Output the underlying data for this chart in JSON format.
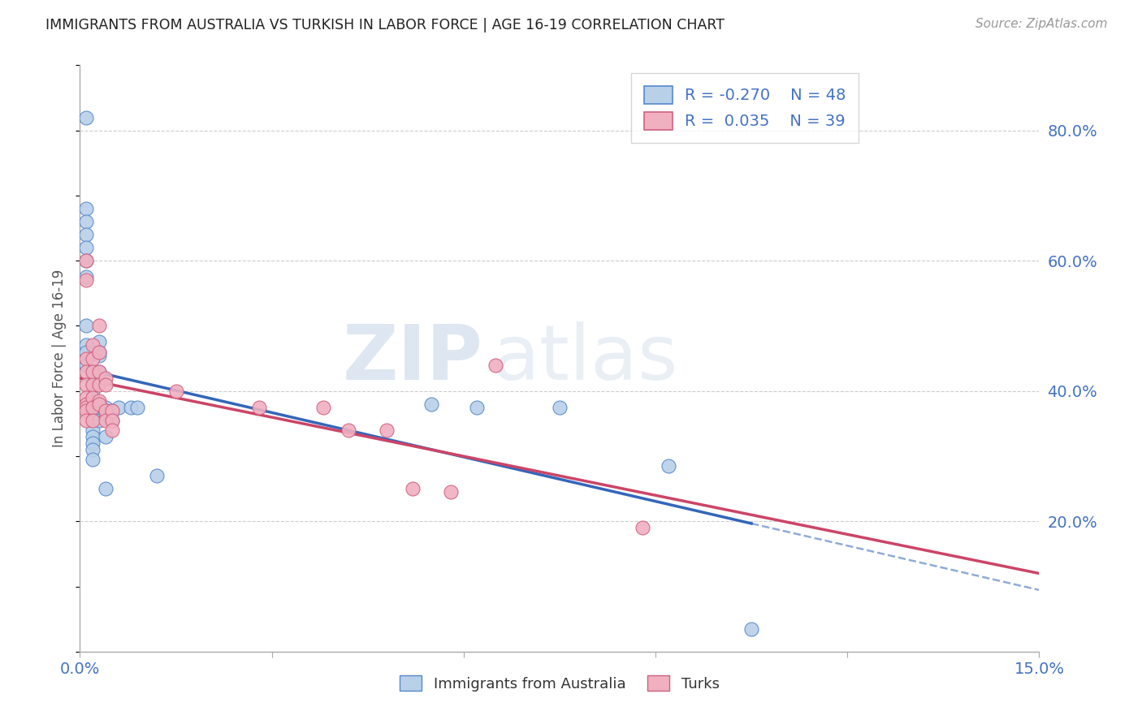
{
  "title": "IMMIGRANTS FROM AUSTRALIA VS TURKISH IN LABOR FORCE | AGE 16-19 CORRELATION CHART",
  "source": "Source: ZipAtlas.com",
  "ylabel": "In Labor Force | Age 16-19",
  "y_ticks": [
    0.2,
    0.4,
    0.6,
    0.8
  ],
  "x_min": 0.0,
  "x_max": 0.15,
  "y_min": 0.0,
  "y_max": 0.9,
  "R_aus": -0.27,
  "N_aus": 48,
  "R_turks": 0.035,
  "N_turks": 39,
  "color_australia_fill": "#b8d0e8",
  "color_australia_edge": "#5588cc",
  "color_turks_fill": "#f0b0c0",
  "color_turks_edge": "#d06080",
  "color_line_australia": "#3366bb",
  "color_line_turks": "#cc4466",
  "color_axis_label": "#4472c4",
  "color_grid": "#cccccc",
  "watermark_zip": "ZIP",
  "watermark_atlas": "atlas",
  "australia_x": [
    0.001,
    0.001,
    0.001,
    0.001,
    0.001,
    0.001,
    0.001,
    0.001,
    0.001,
    0.001,
    0.001,
    0.002,
    0.002,
    0.002,
    0.002,
    0.002,
    0.002,
    0.002,
    0.002,
    0.002,
    0.002,
    0.002,
    0.002,
    0.002,
    0.003,
    0.003,
    0.003,
    0.003,
    0.003,
    0.003,
    0.003,
    0.004,
    0.004,
    0.004,
    0.004,
    0.004,
    0.005,
    0.005,
    0.005,
    0.006,
    0.008,
    0.009,
    0.012,
    0.055,
    0.062,
    0.075,
    0.092,
    0.105
  ],
  "australia_y": [
    0.82,
    0.68,
    0.66,
    0.64,
    0.62,
    0.6,
    0.575,
    0.5,
    0.47,
    0.46,
    0.44,
    0.42,
    0.41,
    0.4,
    0.385,
    0.375,
    0.37,
    0.365,
    0.355,
    0.34,
    0.33,
    0.32,
    0.31,
    0.295,
    0.475,
    0.46,
    0.455,
    0.43,
    0.38,
    0.375,
    0.355,
    0.375,
    0.37,
    0.365,
    0.33,
    0.25,
    0.37,
    0.37,
    0.355,
    0.375,
    0.375,
    0.375,
    0.27,
    0.38,
    0.375,
    0.375,
    0.285,
    0.035
  ],
  "turks_x": [
    0.001,
    0.001,
    0.001,
    0.001,
    0.001,
    0.001,
    0.001,
    0.001,
    0.001,
    0.001,
    0.002,
    0.002,
    0.002,
    0.002,
    0.002,
    0.002,
    0.002,
    0.003,
    0.003,
    0.003,
    0.003,
    0.003,
    0.003,
    0.004,
    0.004,
    0.004,
    0.004,
    0.005,
    0.005,
    0.005,
    0.015,
    0.028,
    0.038,
    0.042,
    0.048,
    0.052,
    0.058,
    0.065,
    0.088
  ],
  "turks_y": [
    0.6,
    0.57,
    0.45,
    0.43,
    0.41,
    0.39,
    0.38,
    0.375,
    0.37,
    0.355,
    0.47,
    0.45,
    0.43,
    0.41,
    0.39,
    0.375,
    0.355,
    0.5,
    0.46,
    0.43,
    0.41,
    0.385,
    0.38,
    0.42,
    0.41,
    0.37,
    0.355,
    0.37,
    0.355,
    0.34,
    0.4,
    0.375,
    0.375,
    0.34,
    0.34,
    0.25,
    0.245,
    0.44,
    0.19
  ]
}
